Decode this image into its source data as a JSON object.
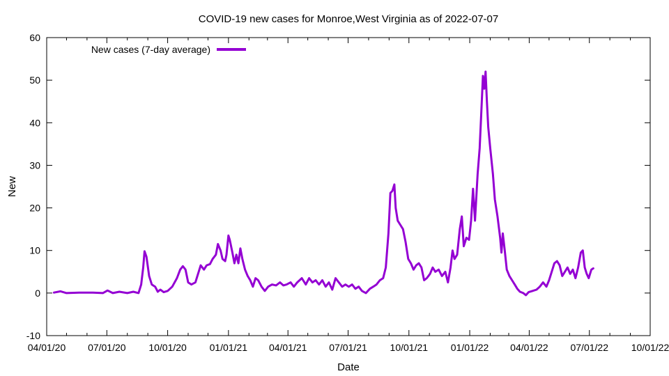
{
  "chart_data": {
    "type": "line",
    "title": "COVID-19 new cases for Monroe,West Virginia as of 2022-07-07",
    "xlabel": "Date",
    "ylabel": "New",
    "ylim": [
      -10,
      60
    ],
    "yticks": [
      -10,
      0,
      10,
      20,
      30,
      40,
      50,
      60
    ],
    "xlim": [
      "2020-04-01",
      "2022-10-01"
    ],
    "xticks": [
      {
        "date": "2020-04-01",
        "label": "04/01/20"
      },
      {
        "date": "2020-07-01",
        "label": "07/01/20"
      },
      {
        "date": "2020-10-01",
        "label": "10/01/20"
      },
      {
        "date": "2021-01-01",
        "label": "01/01/21"
      },
      {
        "date": "2021-04-01",
        "label": "04/01/21"
      },
      {
        "date": "2021-07-01",
        "label": "07/01/21"
      },
      {
        "date": "2021-10-01",
        "label": "10/01/21"
      },
      {
        "date": "2022-01-01",
        "label": "01/01/22"
      },
      {
        "date": "2022-04-01",
        "label": "04/01/22"
      },
      {
        "date": "2022-07-01",
        "label": "07/01/22"
      },
      {
        "date": "2022-10-01",
        "label": "10/01/22"
      }
    ],
    "grid": false,
    "legend_position": "top-left",
    "series": [
      {
        "name": "New cases (7-day average)",
        "color": "#9400d3",
        "points": [
          [
            "2020-04-12",
            0.1
          ],
          [
            "2020-04-22",
            0.4
          ],
          [
            "2020-05-01",
            0.0
          ],
          [
            "2020-05-20",
            0.1
          ],
          [
            "2020-06-10",
            0.1
          ],
          [
            "2020-06-25",
            0.0
          ],
          [
            "2020-07-02",
            0.6
          ],
          [
            "2020-07-10",
            0.0
          ],
          [
            "2020-07-20",
            0.3
          ],
          [
            "2020-08-01",
            0.0
          ],
          [
            "2020-08-10",
            0.3
          ],
          [
            "2020-08-18",
            0.0
          ],
          [
            "2020-08-22",
            2.0
          ],
          [
            "2020-08-25",
            6.0
          ],
          [
            "2020-08-27",
            9.8
          ],
          [
            "2020-08-30",
            8.5
          ],
          [
            "2020-09-03",
            4.0
          ],
          [
            "2020-09-07",
            2.0
          ],
          [
            "2020-09-12",
            1.5
          ],
          [
            "2020-09-16",
            0.3
          ],
          [
            "2020-09-20",
            0.8
          ],
          [
            "2020-09-25",
            0.2
          ],
          [
            "2020-10-01",
            0.5
          ],
          [
            "2020-10-08",
            1.5
          ],
          [
            "2020-10-15",
            3.5
          ],
          [
            "2020-10-20",
            5.5
          ],
          [
            "2020-10-24",
            6.3
          ],
          [
            "2020-10-28",
            5.5
          ],
          [
            "2020-11-01",
            2.5
          ],
          [
            "2020-11-06",
            2.0
          ],
          [
            "2020-11-12",
            2.5
          ],
          [
            "2020-11-16",
            4.5
          ],
          [
            "2020-11-20",
            6.5
          ],
          [
            "2020-11-25",
            5.5
          ],
          [
            "2020-11-29",
            6.5
          ],
          [
            "2020-12-04",
            6.8
          ],
          [
            "2020-12-08",
            8.0
          ],
          [
            "2020-12-13",
            9.0
          ],
          [
            "2020-12-16",
            11.5
          ],
          [
            "2020-12-20",
            10.0
          ],
          [
            "2020-12-23",
            8.0
          ],
          [
            "2020-12-27",
            7.5
          ],
          [
            "2020-12-29",
            9.0
          ],
          [
            "2021-01-01",
            13.5
          ],
          [
            "2021-01-03",
            12.5
          ],
          [
            "2021-01-07",
            9.5
          ],
          [
            "2021-01-10",
            7.0
          ],
          [
            "2021-01-13",
            9.0
          ],
          [
            "2021-01-16",
            7.0
          ],
          [
            "2021-01-19",
            10.5
          ],
          [
            "2021-01-22",
            8.0
          ],
          [
            "2021-01-26",
            5.5
          ],
          [
            "2021-01-30",
            4.0
          ],
          [
            "2021-02-03",
            3.0
          ],
          [
            "2021-02-07",
            1.5
          ],
          [
            "2021-02-11",
            3.5
          ],
          [
            "2021-02-15",
            3.0
          ],
          [
            "2021-02-20",
            1.5
          ],
          [
            "2021-02-25",
            0.5
          ],
          [
            "2021-03-02",
            1.5
          ],
          [
            "2021-03-08",
            2.0
          ],
          [
            "2021-03-14",
            1.8
          ],
          [
            "2021-03-20",
            2.5
          ],
          [
            "2021-03-25",
            1.8
          ],
          [
            "2021-03-30",
            2.0
          ],
          [
            "2021-04-05",
            2.5
          ],
          [
            "2021-04-10",
            1.5
          ],
          [
            "2021-04-15",
            2.5
          ],
          [
            "2021-04-22",
            3.5
          ],
          [
            "2021-04-28",
            2.0
          ],
          [
            "2021-05-03",
            3.5
          ],
          [
            "2021-05-08",
            2.5
          ],
          [
            "2021-05-13",
            3.0
          ],
          [
            "2021-05-18",
            2.0
          ],
          [
            "2021-05-23",
            3.0
          ],
          [
            "2021-05-28",
            1.5
          ],
          [
            "2021-06-02",
            2.5
          ],
          [
            "2021-06-07",
            0.8
          ],
          [
            "2021-06-12",
            3.5
          ],
          [
            "2021-06-17",
            2.5
          ],
          [
            "2021-06-22",
            1.5
          ],
          [
            "2021-06-27",
            2.0
          ],
          [
            "2021-07-02",
            1.5
          ],
          [
            "2021-07-07",
            2.0
          ],
          [
            "2021-07-12",
            1.0
          ],
          [
            "2021-07-17",
            1.5
          ],
          [
            "2021-07-22",
            0.5
          ],
          [
            "2021-07-28",
            0.0
          ],
          [
            "2021-08-03",
            1.0
          ],
          [
            "2021-08-08",
            1.5
          ],
          [
            "2021-08-13",
            2.0
          ],
          [
            "2021-08-18",
            3.0
          ],
          [
            "2021-08-23",
            3.5
          ],
          [
            "2021-08-27",
            6.0
          ],
          [
            "2021-08-31",
            14.0
          ],
          [
            "2021-09-03",
            23.5
          ],
          [
            "2021-09-06",
            24.0
          ],
          [
            "2021-09-09",
            25.5
          ],
          [
            "2021-09-11",
            20.0
          ],
          [
            "2021-09-14",
            17.0
          ],
          [
            "2021-09-18",
            16.0
          ],
          [
            "2021-09-22",
            15.0
          ],
          [
            "2021-09-26",
            12.0
          ],
          [
            "2021-09-30",
            8.0
          ],
          [
            "2021-10-04",
            7.0
          ],
          [
            "2021-10-08",
            5.5
          ],
          [
            "2021-10-12",
            6.5
          ],
          [
            "2021-10-16",
            7.0
          ],
          [
            "2021-10-20",
            6.0
          ],
          [
            "2021-10-24",
            3.0
          ],
          [
            "2021-10-28",
            3.5
          ],
          [
            "2021-11-02",
            4.5
          ],
          [
            "2021-11-06",
            6.0
          ],
          [
            "2021-11-10",
            5.0
          ],
          [
            "2021-11-15",
            5.5
          ],
          [
            "2021-11-20",
            4.0
          ],
          [
            "2021-11-25",
            5.0
          ],
          [
            "2021-11-29",
            2.5
          ],
          [
            "2021-12-03",
            6.0
          ],
          [
            "2021-12-06",
            10.0
          ],
          [
            "2021-12-09",
            8.0
          ],
          [
            "2021-12-13",
            9.0
          ],
          [
            "2021-12-17",
            15.0
          ],
          [
            "2021-12-20",
            18.0
          ],
          [
            "2021-12-23",
            11.0
          ],
          [
            "2021-12-27",
            13.0
          ],
          [
            "2021-12-31",
            12.5
          ],
          [
            "2022-01-03",
            17.0
          ],
          [
            "2022-01-06",
            24.5
          ],
          [
            "2022-01-09",
            17.0
          ],
          [
            "2022-01-13",
            28.0
          ],
          [
            "2022-01-16",
            34.0
          ],
          [
            "2022-01-19",
            44.0
          ],
          [
            "2022-01-21",
            51.0
          ],
          [
            "2022-01-23",
            48.0
          ],
          [
            "2022-01-25",
            52.0
          ],
          [
            "2022-01-27",
            45.0
          ],
          [
            "2022-01-29",
            39.0
          ],
          [
            "2022-02-01",
            34.0
          ],
          [
            "2022-02-05",
            28.0
          ],
          [
            "2022-02-08",
            22.0
          ],
          [
            "2022-02-12",
            18.0
          ],
          [
            "2022-02-16",
            13.0
          ],
          [
            "2022-02-18",
            9.5
          ],
          [
            "2022-02-20",
            14.0
          ],
          [
            "2022-02-23",
            10.0
          ],
          [
            "2022-02-26",
            5.5
          ],
          [
            "2022-03-02",
            4.0
          ],
          [
            "2022-03-06",
            3.0
          ],
          [
            "2022-03-10",
            2.0
          ],
          [
            "2022-03-14",
            1.0
          ],
          [
            "2022-03-18",
            0.3
          ],
          [
            "2022-03-23",
            0.0
          ],
          [
            "2022-03-27",
            -0.5
          ],
          [
            "2022-03-31",
            0.2
          ],
          [
            "2022-04-06",
            0.5
          ],
          [
            "2022-04-12",
            0.8
          ],
          [
            "2022-04-17",
            1.5
          ],
          [
            "2022-04-22",
            2.5
          ],
          [
            "2022-04-27",
            1.5
          ],
          [
            "2022-05-01",
            3.0
          ],
          [
            "2022-05-05",
            5.0
          ],
          [
            "2022-05-09",
            7.0
          ],
          [
            "2022-05-13",
            7.5
          ],
          [
            "2022-05-17",
            6.5
          ],
          [
            "2022-05-21",
            4.0
          ],
          [
            "2022-05-25",
            5.0
          ],
          [
            "2022-05-29",
            6.0
          ],
          [
            "2022-06-02",
            4.5
          ],
          [
            "2022-06-06",
            5.5
          ],
          [
            "2022-06-10",
            3.5
          ],
          [
            "2022-06-14",
            6.0
          ],
          [
            "2022-06-18",
            9.5
          ],
          [
            "2022-06-21",
            10.0
          ],
          [
            "2022-06-24",
            6.0
          ],
          [
            "2022-06-27",
            4.5
          ],
          [
            "2022-06-30",
            3.5
          ],
          [
            "2022-07-04",
            5.5
          ],
          [
            "2022-07-07",
            5.8
          ]
        ]
      }
    ]
  }
}
